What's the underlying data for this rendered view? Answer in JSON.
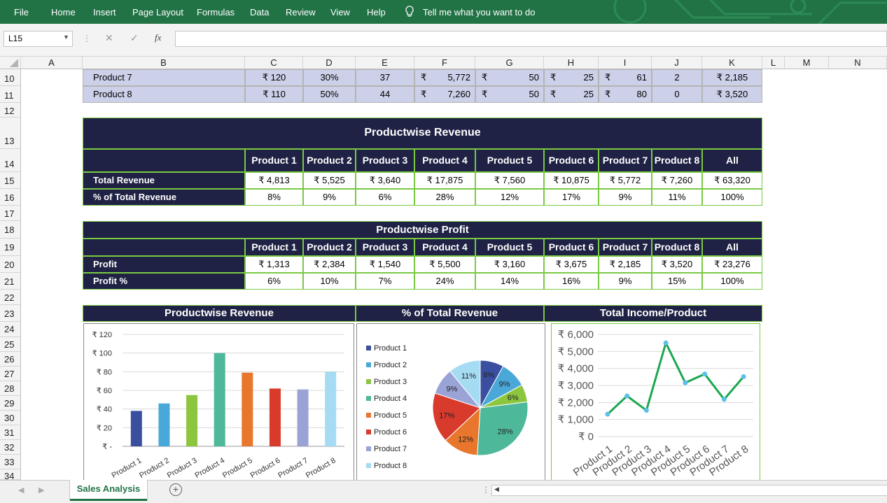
{
  "ribbon": {
    "tabs": [
      "File",
      "Home",
      "Insert",
      "Page Layout",
      "Formulas",
      "Data",
      "Review",
      "View",
      "Help"
    ],
    "tell_me": "Tell me what you want to do"
  },
  "formula_bar": {
    "name_box": "L15",
    "fx": "fx",
    "value": ""
  },
  "columns": [
    "A",
    "B",
    "C",
    "D",
    "E",
    "F",
    "G",
    "H",
    "I",
    "J",
    "K",
    "L",
    "M",
    "N"
  ],
  "rows": [
    "10",
    "11",
    "12",
    "13",
    "14",
    "15",
    "16",
    "17",
    "18",
    "19",
    "20",
    "21",
    "22",
    "23",
    "24",
    "25",
    "26",
    "27",
    "28",
    "29",
    "30",
    "31",
    "32",
    "33",
    "34"
  ],
  "product_table": {
    "rows": [
      {
        "name": "Product 7",
        "c": "₹ 120",
        "d": "30%",
        "e": "37",
        "f_sym": "₹",
        "f": "5,772",
        "g_sym": "₹",
        "g": "50",
        "h_sym": "₹",
        "h": "25",
        "i_sym": "₹",
        "i": "61",
        "j": "2",
        "k": "₹ 2,185"
      },
      {
        "name": "Product 8",
        "c": "₹ 110",
        "d": "50%",
        "e": "44",
        "f_sym": "₹",
        "f": "7,260",
        "g_sym": "₹",
        "g": "50",
        "h_sym": "₹",
        "h": "25",
        "i_sym": "₹",
        "i": "80",
        "j": "0",
        "k": "₹ 3,520"
      }
    ]
  },
  "revenue_table": {
    "title": "Productwise Revenue",
    "headers": [
      "Product 1",
      "Product 2",
      "Product 3",
      "Product 4",
      "Product 5",
      "Product 6",
      "Product 7",
      "Product 8",
      "All"
    ],
    "rows": [
      {
        "label": "Total Revenue",
        "values": [
          "₹ 4,813",
          "₹ 5,525",
          "₹ 3,640",
          "₹ 17,875",
          "₹ 7,560",
          "₹ 10,875",
          "₹ 5,772",
          "₹ 7,260",
          "₹ 63,320"
        ]
      },
      {
        "label": "% of Total Revenue",
        "values": [
          "8%",
          "9%",
          "6%",
          "28%",
          "12%",
          "17%",
          "9%",
          "11%",
          "100%"
        ]
      }
    ]
  },
  "profit_table": {
    "title": "Productwise Profit",
    "headers": [
      "Product 1",
      "Product 2",
      "Product 3",
      "Product 4",
      "Product 5",
      "Product 6",
      "Product 7",
      "Product 8",
      "All"
    ],
    "rows": [
      {
        "label": "Profit",
        "values": [
          "₹ 1,313",
          "₹ 2,384",
          "₹ 1,540",
          "₹ 5,500",
          "₹ 3,160",
          "₹ 3,675",
          "₹ 2,185",
          "₹ 3,520",
          "₹ 23,276"
        ]
      },
      {
        "label": "Profit %",
        "values": [
          "6%",
          "10%",
          "7%",
          "24%",
          "14%",
          "16%",
          "9%",
          "15%",
          "100%"
        ]
      }
    ]
  },
  "chart_headers": [
    "Productwise Revenue",
    "% of Total Revenue",
    "Total Income/Product"
  ],
  "chart_data": [
    {
      "type": "bar",
      "categories": [
        "Product 1",
        "Product 2",
        "Product 3",
        "Product 4",
        "Product 5",
        "Product 6",
        "Product 7",
        "Product 8"
      ],
      "values": [
        38,
        46,
        55,
        100,
        79,
        62,
        61,
        80
      ],
      "colors": [
        "#3a4fa0",
        "#4aa8d8",
        "#8cc63f",
        "#4db89a",
        "#e8762c",
        "#d83a2c",
        "#9aa3d6",
        "#a6dcf3"
      ],
      "ylim": [
        0,
        120
      ],
      "yticks": [
        "₹ -",
        "₹ 20",
        "₹ 40",
        "₹ 60",
        "₹ 80",
        "₹ 100",
        "₹ 120"
      ],
      "grid": true
    },
    {
      "type": "pie",
      "labels": [
        "Product 1",
        "Product 2",
        "Product 3",
        "Product 4",
        "Product 5",
        "Product 6",
        "Product 7",
        "Product 8"
      ],
      "values": [
        8,
        9,
        6,
        28,
        12,
        17,
        9,
        11
      ],
      "data_labels": [
        "8%",
        "9%",
        "6%",
        "28%",
        "12%",
        "17%",
        "9%",
        "11%"
      ],
      "colors": [
        "#3a4fa0",
        "#4aa8d8",
        "#8cc63f",
        "#4db89a",
        "#e8762c",
        "#d83a2c",
        "#9aa3d6",
        "#a6dcf3"
      ],
      "legend": "left"
    },
    {
      "type": "line",
      "categories": [
        "Product 1",
        "Product 2",
        "Product 3",
        "Product 4",
        "Product 5",
        "Product 6",
        "Product 7",
        "Product 8"
      ],
      "values": [
        1313,
        2384,
        1540,
        5500,
        3160,
        3675,
        2185,
        3520
      ],
      "ylim": [
        0,
        6000
      ],
      "yticks": [
        "₹ 0",
        "₹ 1,000",
        "₹ 2,000",
        "₹ 3,000",
        "₹ 4,000",
        "₹ 5,000",
        "₹ 6,000"
      ],
      "line_color": "#1aa84f",
      "marker_color": "#5bc0eb",
      "grid": true
    }
  ],
  "sheet_tabs": {
    "active": "Sales Analysis"
  }
}
